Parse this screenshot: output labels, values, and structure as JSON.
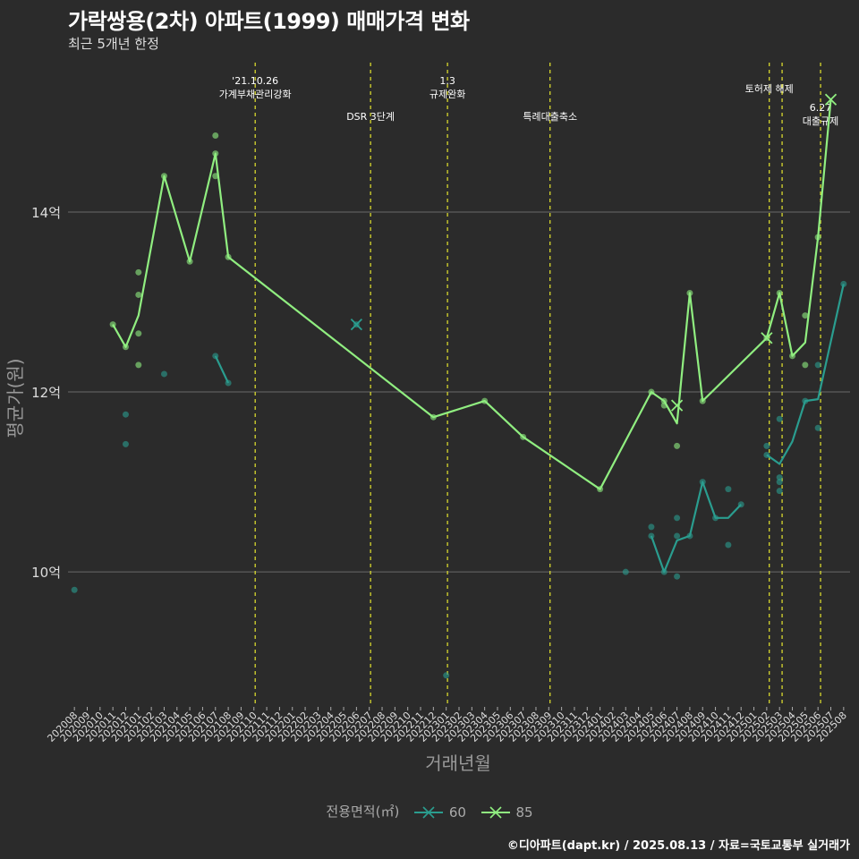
{
  "chart_data": {
    "type": "line",
    "title": "가락쌍용(2차) 아파트(1999) 매매가격 변화",
    "subtitle": "최근 5개년 한정",
    "xlabel": "거래년월",
    "ylabel": "평균가(원)",
    "caption": "©디아파트(dapt.kr) / 2025.08.13 / 자료=국토교통부 실거래가",
    "legend_title": "전용면적(㎡)",
    "colors": {
      "60": "#2a9d8f",
      "85": "#90ee80",
      "event": "#e6e62e"
    },
    "ylim": [
      8.5,
      15.7
    ],
    "yticks": [
      {
        "v": 10,
        "label": "10억"
      },
      {
        "v": 12,
        "label": "12억"
      },
      {
        "v": 14,
        "label": "14억"
      }
    ],
    "categories": [
      "202008",
      "202009",
      "202010",
      "202011",
      "202012",
      "202101",
      "202102",
      "202103",
      "202104",
      "202105",
      "202106",
      "202107",
      "202108",
      "202109",
      "202110",
      "202111",
      "202112",
      "202201",
      "202202",
      "202203",
      "202204",
      "202205",
      "202206",
      "202207",
      "202208",
      "202209",
      "202210",
      "202211",
      "202212",
      "202301",
      "202302",
      "202303",
      "202304",
      "202305",
      "202306",
      "202307",
      "202308",
      "202309",
      "202310",
      "202311",
      "202312",
      "202401",
      "202402",
      "202403",
      "202404",
      "202405",
      "202406",
      "202407",
      "202408",
      "202409",
      "202410",
      "202411",
      "202412",
      "202501",
      "202502",
      "202503",
      "202504",
      "202505",
      "202506",
      "202507",
      "202508"
    ],
    "events": [
      {
        "x": 14.1,
        "date": "'21.10.26",
        "label": "가계부채관리강화",
        "row": 0
      },
      {
        "x": 23.1,
        "date": "",
        "label": "DSR 3단계",
        "row": 1
      },
      {
        "x": 29.1,
        "date": "1.3",
        "label": "규제완화",
        "row": 0
      },
      {
        "x": 37.1,
        "date": "",
        "label": "특례대출축소",
        "row": 1
      },
      {
        "x": 54.2,
        "date": "",
        "label": "토허제 해제",
        "row": -1
      },
      {
        "x": 55.2,
        "date": "",
        "label": "",
        "row": 0
      },
      {
        "x": 58.2,
        "date": "6.27",
        "label": "대출규제",
        "row": 2
      }
    ],
    "series": [
      {
        "name": "60",
        "segments": [
          [
            [
              11,
              12.4
            ],
            [
              12,
              12.1
            ]
          ],
          [
            [
              45,
              10.4
            ],
            [
              46,
              10.0
            ],
            [
              47,
              10.35
            ],
            [
              48,
              10.4
            ],
            [
              49,
              11.0
            ],
            [
              50,
              10.6
            ],
            [
              51,
              10.6
            ],
            [
              52,
              10.75
            ]
          ],
          [
            [
              54,
              11.3
            ],
            [
              55,
              11.2
            ],
            [
              56,
              11.45
            ],
            [
              57,
              11.9
            ],
            [
              58,
              11.92
            ],
            [
              60,
              13.2
            ]
          ]
        ],
        "points": [
          [
            0,
            9.8
          ],
          [
            4,
            11.75
          ],
          [
            4,
            11.42
          ],
          [
            7,
            12.2
          ],
          [
            11,
            12.4
          ],
          [
            12,
            12.1
          ],
          [
            22,
            12.75
          ],
          [
            29,
            8.85
          ],
          [
            43,
            10.0
          ],
          [
            45,
            10.5
          ],
          [
            45,
            10.4
          ],
          [
            46,
            10.0
          ],
          [
            47,
            10.6
          ],
          [
            47,
            10.4
          ],
          [
            47,
            9.95
          ],
          [
            48,
            10.4
          ],
          [
            49,
            11.0
          ],
          [
            50,
            10.6
          ],
          [
            51,
            10.92
          ],
          [
            51,
            10.3
          ],
          [
            52,
            10.75
          ],
          [
            54,
            11.4
          ],
          [
            54,
            11.3
          ],
          [
            55,
            11.7
          ],
          [
            55,
            11.05
          ],
          [
            55,
            11.0
          ],
          [
            55,
            10.9
          ],
          [
            57,
            11.9
          ],
          [
            58,
            12.3
          ],
          [
            58,
            11.6
          ],
          [
            60,
            13.2
          ]
        ],
        "crosses": [
          [
            22,
            12.75
          ]
        ]
      },
      {
        "name": "85",
        "segments": [
          [
            [
              3,
              12.75
            ],
            [
              4,
              12.5
            ],
            [
              5,
              12.85
            ],
            [
              7,
              14.4
            ],
            [
              9,
              13.45
            ],
            [
              11,
              14.65
            ],
            [
              12,
              13.5
            ],
            [
              28,
              11.72
            ],
            [
              32,
              11.9
            ],
            [
              35,
              11.5
            ],
            [
              41,
              10.92
            ],
            [
              45,
              12.0
            ],
            [
              46,
              11.9
            ],
            [
              47,
              11.65
            ],
            [
              48,
              13.1
            ],
            [
              49,
              11.9
            ],
            [
              54,
              12.6
            ],
            [
              55,
              13.1
            ],
            [
              56,
              12.4
            ],
            [
              57,
              12.55
            ],
            [
              58,
              13.72
            ],
            [
              59,
              15.25
            ]
          ]
        ],
        "points": [
          [
            3,
            12.75
          ],
          [
            4,
            12.5
          ],
          [
            5,
            13.33
          ],
          [
            5,
            13.08
          ],
          [
            5,
            12.65
          ],
          [
            5,
            12.3
          ],
          [
            7,
            14.4
          ],
          [
            9,
            13.45
          ],
          [
            11,
            14.85
          ],
          [
            11,
            14.65
          ],
          [
            11,
            14.4
          ],
          [
            12,
            13.5
          ],
          [
            28,
            11.72
          ],
          [
            32,
            11.9
          ],
          [
            35,
            11.5
          ],
          [
            41,
            10.92
          ],
          [
            45,
            12.0
          ],
          [
            46,
            11.9
          ],
          [
            46,
            11.85
          ],
          [
            47,
            11.4
          ],
          [
            48,
            13.1
          ],
          [
            49,
            11.9
          ],
          [
            54,
            12.6
          ],
          [
            55,
            13.1
          ],
          [
            56,
            12.4
          ],
          [
            57,
            12.85
          ],
          [
            57,
            12.3
          ],
          [
            58,
            13.72
          ]
        ],
        "crosses": [
          [
            47,
            11.85
          ],
          [
            54,
            12.6
          ],
          [
            59,
            15.25
          ]
        ]
      }
    ]
  }
}
